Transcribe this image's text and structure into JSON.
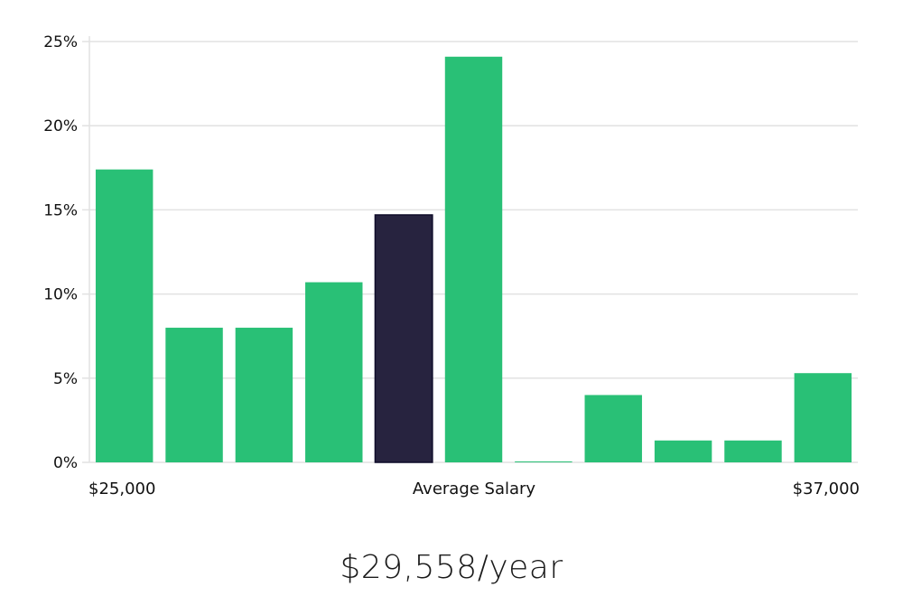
{
  "chart_data": {
    "type": "bar",
    "title": "",
    "xlabel": "Average Salary",
    "ylabel": "",
    "x_range_labels": {
      "start": "$25,000",
      "end": "$37,000"
    },
    "values": [
      17.4,
      8.0,
      8.0,
      10.7,
      14.7,
      24.1,
      0.05,
      4.0,
      1.3,
      1.3,
      5.3
    ],
    "highlight_index": 4,
    "ylim": [
      0,
      25
    ],
    "yticks": [
      0,
      5,
      10,
      15,
      20,
      25
    ],
    "ytick_labels": [
      "0%",
      "5%",
      "10%",
      "15%",
      "20%",
      "25%"
    ],
    "grid": true,
    "colors": {
      "bar": "#29c076",
      "highlight": "#27233f",
      "highlight_outline": "#0f0c2a"
    }
  },
  "summary": {
    "salary_text": "$29,558/year"
  }
}
